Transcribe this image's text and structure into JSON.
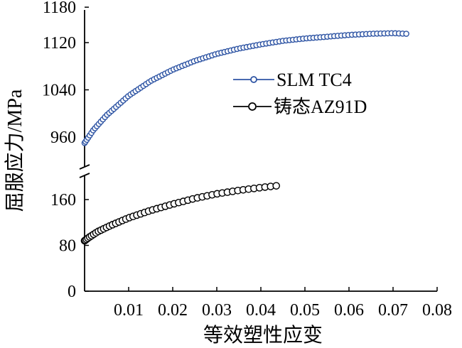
{
  "chart_data": {
    "type": "scatter",
    "xlabel": "等效塑性应变",
    "ylabel": "屈服应力/MPa",
    "xlim": [
      0,
      0.08
    ],
    "x_ticks": [
      "0.01",
      "0.02",
      "0.03",
      "0.04",
      "0.05",
      "0.06",
      "0.07",
      "0.08"
    ],
    "x_tick_values": [
      0.01,
      0.02,
      0.03,
      0.04,
      0.05,
      0.06,
      0.07,
      0.08
    ],
    "y_axis_break": true,
    "y_upper_range": [
      900,
      1180
    ],
    "y_upper_ticks": [
      "960",
      "1040",
      "1120",
      "1180"
    ],
    "y_upper_tick_values": [
      960,
      1040,
      1120,
      1180
    ],
    "y_lower_range": [
      0,
      190
    ],
    "y_lower_ticks": [
      "0",
      "80",
      "160"
    ],
    "y_lower_tick_values": [
      0,
      80,
      160
    ],
    "legend_position": "right",
    "grid": false,
    "series": [
      {
        "name": "SLM TC4",
        "color": "#2f55a4",
        "segment": "upper",
        "anchors_x": [
          0.0,
          0.002,
          0.005,
          0.01,
          0.015,
          0.02,
          0.025,
          0.03,
          0.035,
          0.04,
          0.045,
          0.05,
          0.055,
          0.06,
          0.065,
          0.07,
          0.073
        ],
        "anchors_y": [
          950,
          972,
          997,
          1030,
          1055,
          1074,
          1089,
          1101,
          1110,
          1117,
          1123,
          1127,
          1130,
          1133,
          1135,
          1136,
          1135
        ],
        "x_max": 0.073,
        "point_count": 110
      },
      {
        "name": "铸态AZ91D",
        "color": "#000000",
        "segment": "lower",
        "anchors_x": [
          0.0,
          0.001,
          0.003,
          0.006,
          0.01,
          0.015,
          0.02,
          0.025,
          0.03,
          0.035,
          0.04,
          0.0435
        ],
        "anchors_y": [
          88,
          94,
          104,
          115,
          128,
          141,
          152,
          162,
          170,
          176,
          181,
          184
        ],
        "x_max": 0.0435,
        "point_count": 50
      }
    ]
  }
}
